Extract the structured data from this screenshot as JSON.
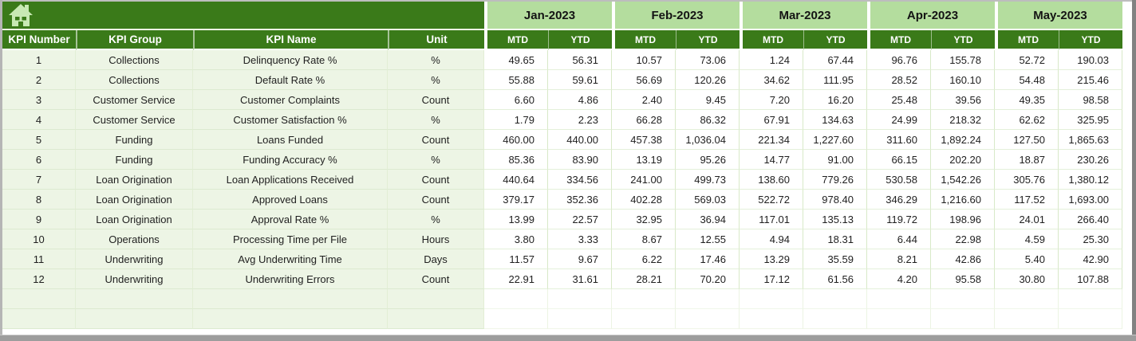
{
  "app": {
    "type": "spreadsheet-kpi-dashboard"
  },
  "table": {
    "corner_icon": "home-icon",
    "label_headers": [
      "KPI Number",
      "KPI Group",
      "KPI Name",
      "Unit"
    ],
    "months": [
      "Jan-2023",
      "Feb-2023",
      "Mar-2023",
      "Apr-2023",
      "May-2023"
    ],
    "sub_headers": [
      "MTD",
      "YTD"
    ],
    "rows": [
      {
        "num": "1",
        "group": "Collections",
        "name": "Delinquency Rate %",
        "unit": "%",
        "values": [
          "49.65",
          "56.31",
          "10.57",
          "73.06",
          "1.24",
          "67.44",
          "96.76",
          "155.78",
          "52.72",
          "190.03"
        ]
      },
      {
        "num": "2",
        "group": "Collections",
        "name": "Default Rate %",
        "unit": "%",
        "values": [
          "55.88",
          "59.61",
          "56.69",
          "120.26",
          "34.62",
          "111.95",
          "28.52",
          "160.10",
          "54.48",
          "215.46"
        ]
      },
      {
        "num": "3",
        "group": "Customer Service",
        "name": "Customer Complaints",
        "unit": "Count",
        "values": [
          "6.60",
          "4.86",
          "2.40",
          "9.45",
          "7.20",
          "16.20",
          "25.48",
          "39.56",
          "49.35",
          "98.58"
        ]
      },
      {
        "num": "4",
        "group": "Customer Service",
        "name": "Customer Satisfaction %",
        "unit": "%",
        "values": [
          "1.79",
          "2.23",
          "66.28",
          "86.32",
          "67.91",
          "134.63",
          "24.99",
          "218.32",
          "62.62",
          "325.95"
        ]
      },
      {
        "num": "5",
        "group": "Funding",
        "name": "Loans Funded",
        "unit": "Count",
        "values": [
          "460.00",
          "440.00",
          "457.38",
          "1,036.04",
          "221.34",
          "1,227.60",
          "311.60",
          "1,892.24",
          "127.50",
          "1,865.63"
        ]
      },
      {
        "num": "6",
        "group": "Funding",
        "name": "Funding Accuracy %",
        "unit": "%",
        "values": [
          "85.36",
          "83.90",
          "13.19",
          "95.26",
          "14.77",
          "91.00",
          "66.15",
          "202.20",
          "18.87",
          "230.26"
        ]
      },
      {
        "num": "7",
        "group": "Loan Origination",
        "name": "Loan Applications Received",
        "unit": "Count",
        "values": [
          "440.64",
          "334.56",
          "241.00",
          "499.73",
          "138.60",
          "779.26",
          "530.58",
          "1,542.26",
          "305.76",
          "1,380.12"
        ]
      },
      {
        "num": "8",
        "group": "Loan Origination",
        "name": "Approved Loans",
        "unit": "Count",
        "values": [
          "379.17",
          "352.36",
          "402.28",
          "569.03",
          "522.72",
          "978.40",
          "346.29",
          "1,216.60",
          "117.52",
          "1,693.00"
        ]
      },
      {
        "num": "9",
        "group": "Loan Origination",
        "name": "Approval Rate %",
        "unit": "%",
        "values": [
          "13.99",
          "22.57",
          "32.95",
          "36.94",
          "117.01",
          "135.13",
          "119.72",
          "198.96",
          "24.01",
          "266.40"
        ]
      },
      {
        "num": "10",
        "group": "Operations",
        "name": "Processing Time per File",
        "unit": "Hours",
        "values": [
          "3.80",
          "3.33",
          "8.67",
          "12.55",
          "4.94",
          "18.31",
          "6.44",
          "22.98",
          "4.59",
          "25.30"
        ]
      },
      {
        "num": "11",
        "group": "Underwriting",
        "name": "Avg Underwriting Time",
        "unit": "Days",
        "values": [
          "11.57",
          "9.67",
          "6.22",
          "17.46",
          "13.29",
          "35.59",
          "8.21",
          "42.86",
          "5.40",
          "42.90"
        ]
      },
      {
        "num": "12",
        "group": "Underwriting",
        "name": "Underwriting Errors",
        "unit": "Count",
        "values": [
          "22.91",
          "31.61",
          "28.21",
          "70.20",
          "17.12",
          "61.56",
          "4.20",
          "95.58",
          "30.80",
          "107.88"
        ]
      }
    ],
    "empty_row_count": 2
  },
  "colors": {
    "header_green": "#3a7a19",
    "month_band_green": "#b4dd9e",
    "row_label_tint": "#edf5e5",
    "frame_gray": "#9d9d9d"
  }
}
